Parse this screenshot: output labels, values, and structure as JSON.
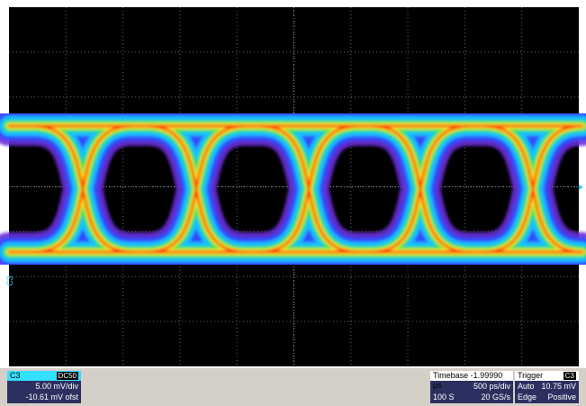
{
  "trace_marker": "C3",
  "channel": {
    "label": "C3",
    "coupling": "DC50",
    "scale": "5.00 mV/div",
    "offset": "-10.61 mV ofst"
  },
  "timebase": {
    "title": "Timebase -1.99990 µs",
    "scale": "500 ps/div",
    "samples": "100 S",
    "rate": "20 GS/s"
  },
  "trigger": {
    "title": "Trigger",
    "source": "C3",
    "mode": "Auto",
    "level": "10.75 mV",
    "type": "Edge",
    "slope": "Positive"
  }
}
